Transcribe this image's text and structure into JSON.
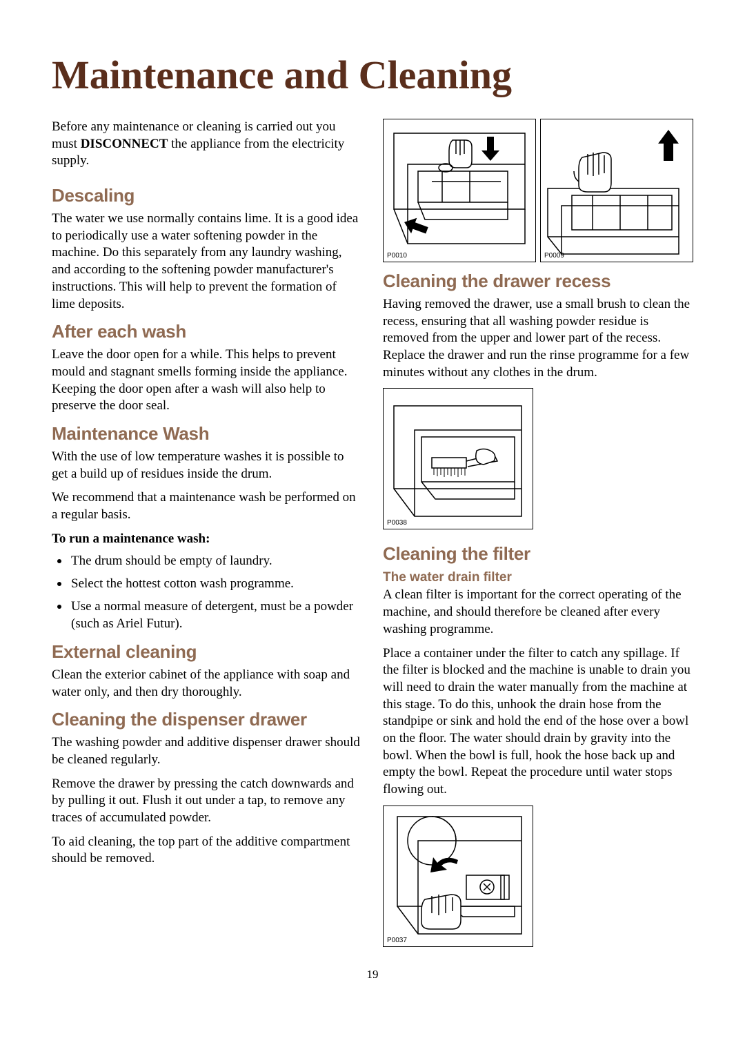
{
  "colors": {
    "title": "#5a2e1c",
    "heading": "#8f6a52",
    "text": "#000000",
    "background": "#ffffff",
    "border": "#000000"
  },
  "title": "Maintenance and Cleaning",
  "intro_pre": "Before any maintenance or cleaning is carried out you must ",
  "intro_bold": "DISCONNECT",
  "intro_post": " the appliance from the electricity supply.",
  "left": {
    "descaling": {
      "heading": "Descaling",
      "body": "The water we use normally contains lime. It is a good idea to periodically use a water softening powder in the machine. Do this separately from any laundry washing, and according to the softening powder manufacturer's instructions. This will help to prevent the formation of lime deposits."
    },
    "after_wash": {
      "heading": "After each wash",
      "body": "Leave the door open for a while. This helps to prevent mould and stagnant smells forming inside the appliance. Keeping the door open after a wash will also help to preserve the door seal."
    },
    "maint_wash": {
      "heading": "Maintenance Wash",
      "body1": "With the use of low temperature washes it is possible to get a build up of residues inside the drum.",
      "body2": "We recommend that a maintenance wash be performed on a regular basis.",
      "sub": "To run a maintenance wash:",
      "items": [
        "The drum should be empty of laundry.",
        "Select the hottest cotton wash programme.",
        "Use a normal measure of detergent, must be a powder (such as Ariel Futur)."
      ]
    },
    "external": {
      "heading": "External cleaning",
      "body": "Clean the exterior cabinet of the appliance with soap and water only, and then dry thoroughly."
    },
    "dispenser": {
      "heading": "Cleaning the dispenser drawer",
      "body1": "The washing powder and additive dispenser drawer should be cleaned regularly.",
      "body2": "Remove the drawer by pressing the catch downwards and by pulling it out. Flush it out under a tap, to remove any traces of accumulated powder.",
      "body3": "To aid cleaning, the top part of the additive compartment should be removed."
    }
  },
  "right": {
    "fig1_label": "P0010",
    "fig2_label": "P0009",
    "recess": {
      "heading": "Cleaning the drawer recess",
      "body": "Having removed the drawer, use a small brush to clean the recess, ensuring that all washing powder residue is removed from the upper and lower part of the recess. Replace the drawer and run the rinse programme for a few minutes without any clothes in the drum."
    },
    "fig3_label": "P0038",
    "filter": {
      "heading": "Cleaning the filter",
      "sub": "The water drain filter",
      "body1": "A clean filter is important for the correct operating of the machine, and should therefore be cleaned after every washing programme.",
      "body2": "Place a container under the filter to catch any spillage. If the filter is blocked and the machine is unable to drain you will need to drain the water manually from the machine at this stage. To do this, unhook the drain hose from the standpipe or sink and hold the end of the hose over a bowl on the floor. The water should drain by gravity into the bowl. When the bowl is full, hook the hose back up and empty the bowl. Repeat the procedure until water stops flowing out."
    },
    "fig4_label": "P0037"
  },
  "page_number": "19"
}
